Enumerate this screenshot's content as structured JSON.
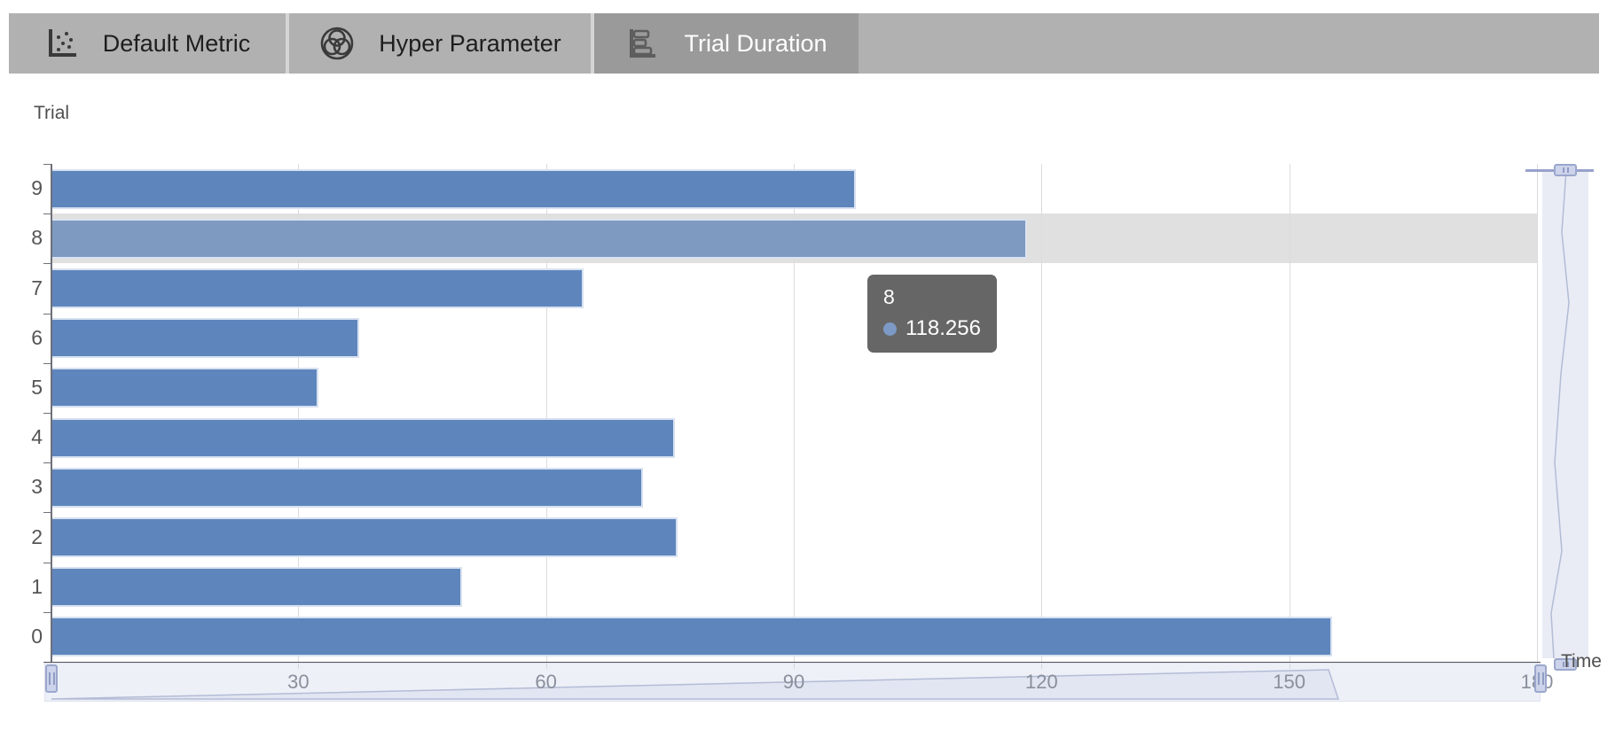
{
  "tabs": {
    "items": [
      {
        "label": "Default Metric",
        "icon": "scatter-plot-icon",
        "active": false
      },
      {
        "label": "Hyper Parameter",
        "icon": "hyper-parameter-venn-icon",
        "active": false
      },
      {
        "label": "Trial Duration",
        "icon": "horizontal-bar-chart-icon",
        "active": true
      }
    ]
  },
  "chart_data": {
    "type": "bar",
    "orientation": "horizontal",
    "title": "",
    "ylabel": "Trial",
    "xlabel": "Time",
    "categories": [
      "9",
      "8",
      "7",
      "6",
      "5",
      "4",
      "3",
      "2",
      "1",
      "0"
    ],
    "values": [
      97.5,
      118.256,
      64.5,
      37.4,
      32.4,
      75.6,
      71.7,
      75.9,
      49.8,
      155.2
    ],
    "xlim": [
      0,
      180
    ],
    "xticks": [
      0,
      30,
      60,
      90,
      120,
      150,
      180
    ],
    "grid": true,
    "legend_position": "none",
    "highlighted_category": "8",
    "colors": {
      "bar": "#5e86bd",
      "bar_highlight": "#7e9ac1",
      "hover_band": "#e0e0e0",
      "gridline": "#dcdcdc",
      "axis": "#565656",
      "x_tick_label": "#8a8f9c",
      "y_tick_label": "#555555",
      "axis_name": "#4e4e4e"
    }
  },
  "tooltip": {
    "title": "8",
    "value": "118.256",
    "marker_color": "#7d9ac6"
  },
  "datazoom": {
    "band_fill": "#eaedf6",
    "handle_fill": "#ccd3ea",
    "handle_border": "#9ba7cc",
    "shadow_line": "#b4bcd6",
    "shadow_fill": "#e2e6f2"
  }
}
